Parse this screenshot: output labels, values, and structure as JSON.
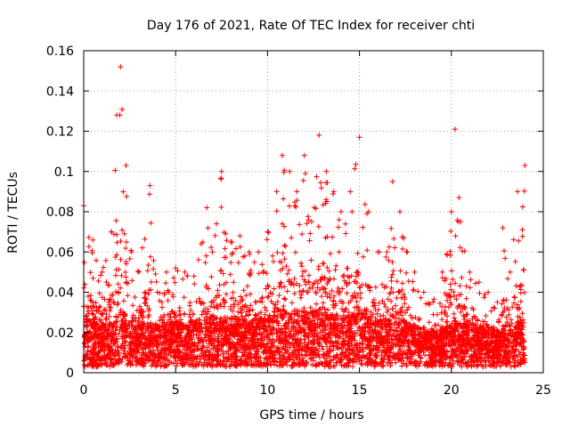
{
  "chart_data": {
    "type": "scatter",
    "title": "Day 176 of 2021, Rate Of TEC Index for receiver chti",
    "xlabel": "GPS time / hours",
    "ylabel": "ROTI / TECUs",
    "xlim": [
      0,
      25
    ],
    "ylim": [
      0,
      0.16
    ],
    "xticks": [
      "0",
      "5",
      "10",
      "15",
      "20",
      "25"
    ],
    "yticks": [
      "0",
      "0.02",
      "0.04",
      "0.06",
      "0.08",
      "0.1",
      "0.12",
      "0.14",
      "0.16"
    ],
    "grid": true,
    "marker": "+",
    "color": "#ff0000",
    "data_x_range": [
      0,
      24
    ],
    "envelope": {
      "x": [
        0,
        0.5,
        1,
        1.5,
        1.8,
        2,
        2.3,
        2.6,
        3,
        3.6,
        4,
        4.5,
        5,
        5.5,
        6,
        6.7,
        7,
        7.5,
        8,
        8.5,
        9,
        9.5,
        10,
        10.5,
        10.8,
        11.2,
        11.6,
        12,
        12.4,
        12.8,
        13.2,
        13.6,
        14,
        14.5,
        15,
        15.5,
        16,
        16.5,
        16.8,
        17.2,
        17.6,
        18,
        18.5,
        19,
        19.5,
        20,
        20.2,
        20.5,
        21,
        21.5,
        22,
        22.5,
        22.8,
        23.2,
        23.6,
        24
      ],
      "max": [
        0.083,
        0.066,
        0.05,
        0.07,
        0.128,
        0.152,
        0.103,
        0.06,
        0.05,
        0.093,
        0.04,
        0.05,
        0.052,
        0.05,
        0.048,
        0.082,
        0.06,
        0.1,
        0.065,
        0.068,
        0.06,
        0.06,
        0.07,
        0.09,
        0.108,
        0.1,
        0.09,
        0.108,
        0.075,
        0.118,
        0.1,
        0.09,
        0.08,
        0.09,
        0.117,
        0.08,
        0.06,
        0.06,
        0.095,
        0.08,
        0.06,
        0.05,
        0.04,
        0.035,
        0.05,
        0.08,
        0.121,
        0.075,
        0.05,
        0.045,
        0.04,
        0.035,
        0.072,
        0.05,
        0.09,
        0.103
      ],
      "median": [
        0.015,
        0.014,
        0.013,
        0.014,
        0.016,
        0.018,
        0.016,
        0.014,
        0.013,
        0.014,
        0.013,
        0.014,
        0.014,
        0.014,
        0.014,
        0.016,
        0.016,
        0.016,
        0.015,
        0.015,
        0.015,
        0.015,
        0.016,
        0.017,
        0.018,
        0.018,
        0.017,
        0.018,
        0.017,
        0.018,
        0.017,
        0.016,
        0.016,
        0.016,
        0.018,
        0.016,
        0.015,
        0.014,
        0.016,
        0.015,
        0.014,
        0.013,
        0.012,
        0.011,
        0.012,
        0.013,
        0.015,
        0.014,
        0.013,
        0.012,
        0.012,
        0.011,
        0.013,
        0.013,
        0.014,
        0.015
      ]
    }
  }
}
